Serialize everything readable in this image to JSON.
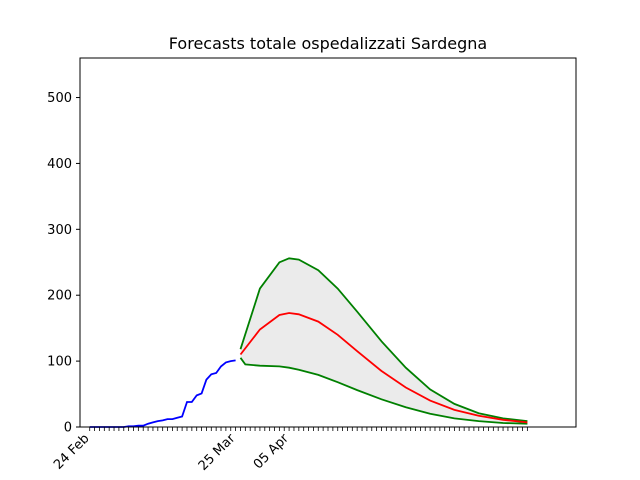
{
  "chart_data": {
    "type": "line",
    "title": "Forecasts totale ospedalizzati Sardegna",
    "xlabel": "",
    "ylabel": "",
    "x_unit": "day index from 24 Feb",
    "xlim": [
      -2,
      100
    ],
    "ylim": [
      0,
      560
    ],
    "y_ticks": [
      0,
      100,
      200,
      300,
      400,
      500
    ],
    "x_tick_labels": [
      {
        "x": 0,
        "label": "24 Feb"
      },
      {
        "x": 30,
        "label": "25 Mar"
      },
      {
        "x": 41,
        "label": "05 Apr"
      }
    ],
    "grid": false,
    "colors": {
      "observed": "#0000ff",
      "forecast": "#ff0000",
      "bounds": "#008000",
      "band_fill": "#ebebeb"
    },
    "observed": {
      "x": [
        0,
        1,
        2,
        3,
        4,
        5,
        6,
        7,
        8,
        9,
        10,
        11,
        12,
        13,
        14,
        15,
        16,
        17,
        18,
        19,
        20,
        21,
        22,
        23,
        24,
        25,
        26,
        27,
        28,
        29,
        30
      ],
      "y": [
        0,
        0,
        0,
        0,
        0,
        0,
        0,
        0,
        1,
        1,
        2,
        2,
        5,
        7,
        9,
        10,
        12,
        12,
        14,
        16,
        38,
        38,
        48,
        51,
        72,
        80,
        82,
        92,
        98,
        100,
        101
      ]
    },
    "forecast": {
      "x": [
        31,
        35,
        39,
        41,
        43,
        47,
        51,
        55,
        60,
        65,
        70,
        75,
        80,
        85,
        90
      ],
      "y": [
        110,
        148,
        170,
        173,
        171,
        160,
        140,
        115,
        85,
        60,
        40,
        26,
        17,
        11,
        7
      ]
    },
    "upper_bound": {
      "x": [
        31,
        35,
        39,
        41,
        43,
        47,
        51,
        55,
        60,
        65,
        70,
        75,
        80,
        85,
        90
      ],
      "y": [
        118,
        210,
        250,
        256,
        254,
        238,
        210,
        175,
        130,
        90,
        57,
        35,
        21,
        13,
        9
      ]
    },
    "lower_bound": {
      "x": [
        31,
        32,
        35,
        39,
        41,
        43,
        47,
        51,
        55,
        60,
        65,
        70,
        75,
        80,
        85,
        90
      ],
      "y": [
        105,
        95,
        93,
        92,
        90,
        87,
        79,
        68,
        56,
        42,
        30,
        20,
        13,
        9,
        6,
        5
      ]
    }
  }
}
